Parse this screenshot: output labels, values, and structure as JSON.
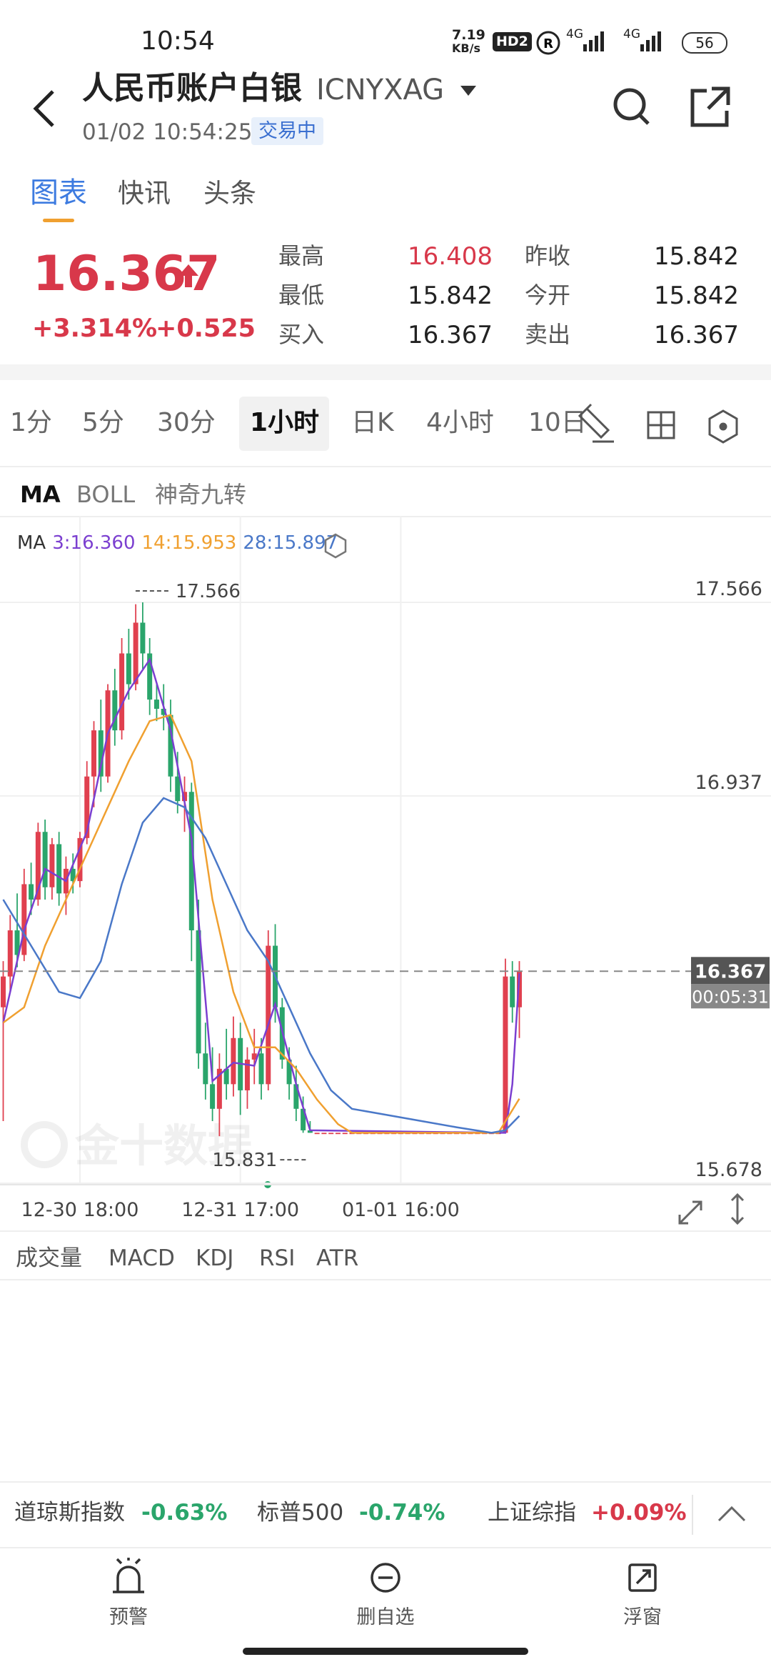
{
  "status_bar": {
    "time": "10:54",
    "speed": "7.19",
    "speed_unit": "KB/s",
    "hd": "HD2",
    "net1": "4G",
    "net2": "4G",
    "battery": "56"
  },
  "header": {
    "title": "人民币账户白银",
    "code": "ICNYXAG",
    "datetime": "01/02 10:54:25",
    "status": "交易中"
  },
  "tabs": [
    "图表",
    "快讯",
    "头条"
  ],
  "quote": {
    "price": 16.367,
    "change_pct": "+3.314%",
    "change": "+0.525",
    "stats": [
      {
        "label": "最高",
        "value": 16.408
      },
      {
        "label": "最低",
        "value": 15.842
      },
      {
        "label": "买入",
        "value": 16.367
      },
      {
        "label": "昨收",
        "value": 15.842
      },
      {
        "label": "今开",
        "value": 15.842
      },
      {
        "label": "卖出",
        "value": 16.367
      }
    ]
  },
  "periods": [
    "1分",
    "5分",
    "30分",
    "1小时",
    "日K",
    "4小时",
    "10日"
  ],
  "overlays": [
    "MA",
    "BOLL",
    "神奇九转"
  ],
  "chart_data": {
    "type": "candlestick",
    "legend_title": "MA",
    "up_color": "#e0404f",
    "down_color": "#2aa56b",
    "grid": true,
    "ylim": [
      15.678,
      17.847
    ],
    "yticks": [
      17.566,
      16.937,
      15.678
    ],
    "xticks": [
      {
        "value": 11,
        "label": "12-30 18:00"
      },
      {
        "value": 34,
        "label": "12-31 17:00"
      },
      {
        "value": 57,
        "label": "01-01 16:00"
      }
    ],
    "last_price": 16.367,
    "countdown": "00:05:31",
    "watermark": "金十数据",
    "high_mark": {
      "x": 20,
      "value": 17.566
    },
    "low_mark": {
      "x": 31,
      "value": 15.831
    },
    "candles": [
      [
        16.25,
        16.4,
        15.88,
        16.35
      ],
      [
        16.35,
        16.55,
        16.3,
        16.5
      ],
      [
        16.5,
        16.62,
        16.38,
        16.42
      ],
      [
        16.42,
        16.7,
        16.4,
        16.65
      ],
      [
        16.65,
        16.72,
        16.55,
        16.6
      ],
      [
        16.6,
        16.85,
        16.58,
        16.82
      ],
      [
        16.82,
        16.86,
        16.6,
        16.64
      ],
      [
        16.64,
        16.8,
        16.6,
        16.78
      ],
      [
        16.78,
        16.82,
        16.58,
        16.62
      ],
      [
        16.62,
        16.74,
        16.55,
        16.7
      ],
      [
        16.7,
        16.75,
        16.62,
        16.66
      ],
      [
        16.66,
        16.82,
        16.64,
        16.8
      ],
      [
        16.8,
        17.05,
        16.78,
        17.0
      ],
      [
        17.0,
        17.18,
        16.9,
        17.15
      ],
      [
        17.15,
        17.25,
        16.95,
        17.0
      ],
      [
        17.0,
        17.3,
        16.98,
        17.28
      ],
      [
        17.28,
        17.35,
        17.1,
        17.15
      ],
      [
        17.15,
        17.45,
        17.12,
        17.4
      ],
      [
        17.4,
        17.48,
        17.25,
        17.3
      ],
      [
        17.3,
        17.56,
        17.28,
        17.5
      ],
      [
        17.5,
        17.566,
        17.35,
        17.4
      ],
      [
        17.4,
        17.45,
        17.2,
        17.25
      ],
      [
        17.25,
        17.3,
        17.18,
        17.22
      ],
      [
        17.22,
        17.3,
        17.15,
        17.2
      ],
      [
        17.2,
        17.25,
        16.95,
        17.0
      ],
      [
        17.0,
        17.08,
        16.88,
        16.92
      ],
      [
        16.92,
        17.0,
        16.82,
        16.95
      ],
      [
        16.95,
        16.98,
        16.4,
        16.5
      ],
      [
        16.5,
        16.6,
        16.05,
        16.1
      ],
      [
        16.1,
        16.2,
        15.95,
        16.0
      ],
      [
        16.0,
        16.12,
        15.88,
        15.92
      ],
      [
        15.92,
        16.1,
        15.831,
        16.05
      ],
      [
        16.05,
        16.18,
        15.95,
        16.0
      ],
      [
        16.0,
        16.22,
        15.96,
        16.15
      ],
      [
        16.15,
        16.2,
        15.9,
        15.98
      ],
      [
        15.98,
        16.12,
        15.92,
        16.08
      ],
      [
        16.08,
        16.18,
        16.0,
        16.1
      ],
      [
        16.1,
        16.15,
        15.95,
        16.0
      ],
      [
        16.0,
        16.5,
        15.98,
        16.45
      ],
      [
        16.45,
        16.52,
        16.2,
        16.25
      ],
      [
        16.25,
        16.28,
        16.05,
        16.08
      ],
      [
        16.08,
        16.12,
        15.95,
        16.0
      ],
      [
        16.0,
        16.06,
        15.88,
        15.92
      ],
      [
        15.92,
        15.96,
        15.842,
        15.85
      ],
      [
        15.85,
        15.88,
        15.842,
        15.842
      ],
      [
        15.842,
        15.842,
        15.842,
        15.842
      ],
      [
        15.842,
        15.842,
        15.842,
        15.842
      ],
      [
        15.842,
        15.842,
        15.842,
        15.842
      ],
      [
        15.842,
        15.842,
        15.842,
        15.842
      ],
      [
        15.842,
        15.842,
        15.842,
        15.842
      ],
      [
        15.842,
        15.842,
        15.842,
        15.842
      ],
      [
        15.842,
        15.842,
        15.842,
        15.842
      ],
      [
        15.842,
        15.842,
        15.842,
        15.842
      ],
      [
        15.842,
        15.842,
        15.842,
        15.842
      ],
      [
        15.842,
        15.842,
        15.842,
        15.842
      ],
      [
        15.842,
        15.842,
        15.842,
        15.842
      ],
      [
        15.842,
        15.842,
        15.842,
        15.842
      ],
      [
        15.842,
        15.842,
        15.842,
        15.842
      ],
      [
        15.842,
        15.842,
        15.842,
        15.842
      ],
      [
        15.842,
        15.842,
        15.842,
        15.842
      ],
      [
        15.842,
        15.842,
        15.842,
        15.842
      ],
      [
        15.842,
        15.842,
        15.842,
        15.842
      ],
      [
        15.842,
        15.842,
        15.842,
        15.842
      ],
      [
        15.842,
        15.842,
        15.842,
        15.842
      ],
      [
        15.842,
        15.842,
        15.842,
        15.842
      ],
      [
        15.842,
        15.842,
        15.842,
        15.842
      ],
      [
        15.842,
        15.842,
        15.842,
        15.842
      ],
      [
        15.842,
        15.842,
        15.842,
        15.842
      ],
      [
        15.842,
        15.842,
        15.842,
        15.842
      ],
      [
        15.842,
        15.842,
        15.842,
        15.842
      ],
      [
        15.842,
        15.842,
        15.842,
        15.842
      ],
      [
        15.842,
        15.842,
        15.842,
        15.842
      ],
      [
        15.842,
        16.408,
        15.842,
        16.35
      ],
      [
        16.35,
        16.4,
        16.2,
        16.25
      ],
      [
        16.25,
        16.4,
        16.15,
        16.367
      ]
    ],
    "series": [
      {
        "name": "3:16.360",
        "color": "#7b3fd0",
        "x": [
          0,
          3,
          6,
          9,
          12,
          15,
          18,
          21,
          24,
          27,
          30,
          33,
          36,
          39,
          42,
          44,
          71,
          72,
          73,
          74
        ],
        "values": [
          16.2,
          16.5,
          16.7,
          16.66,
          16.82,
          17.14,
          17.28,
          17.38,
          17.15,
          16.8,
          16.01,
          16.07,
          16.06,
          16.26,
          16.0,
          15.85,
          15.842,
          15.842,
          16.0,
          16.36
        ]
      },
      {
        "name": "14:15.953",
        "color": "#f0a030",
        "x": [
          0,
          3,
          6,
          9,
          12,
          15,
          18,
          21,
          24,
          27,
          30,
          33,
          36,
          39,
          42,
          45,
          48,
          50,
          71,
          74
        ],
        "values": [
          16.2,
          16.25,
          16.45,
          16.6,
          16.75,
          16.9,
          17.05,
          17.18,
          17.2,
          17.05,
          16.6,
          16.3,
          16.12,
          16.12,
          16.05,
          15.95,
          15.87,
          15.842,
          15.842,
          15.953
        ]
      },
      {
        "name": "28:15.897",
        "color": "#4a78c8",
        "x": [
          0,
          4,
          8,
          11,
          14,
          17,
          20,
          23,
          26,
          29,
          32,
          35,
          38,
          41,
          44,
          47,
          50,
          55,
          60,
          65,
          70,
          72,
          74
        ],
        "values": [
          16.6,
          16.45,
          16.3,
          16.28,
          16.4,
          16.65,
          16.85,
          16.93,
          16.9,
          16.8,
          16.65,
          16.5,
          16.4,
          16.25,
          16.1,
          15.98,
          15.92,
          15.9,
          15.88,
          15.86,
          15.842,
          15.85,
          15.897
        ]
      }
    ]
  },
  "indicators": [
    "成交量",
    "MACD",
    "KDJ",
    "RSI",
    "ATR"
  ],
  "indices": [
    {
      "name": "道琼斯指数",
      "change": "-0.63%",
      "color": "#2aa56b"
    },
    {
      "name": "标普500",
      "change": "-0.74%",
      "color": "#2aa56b"
    },
    {
      "name": "上证综指",
      "change": "+0.09%",
      "color": "#d8384a"
    }
  ],
  "nav": [
    "预警",
    "删自选",
    "浮窗"
  ]
}
